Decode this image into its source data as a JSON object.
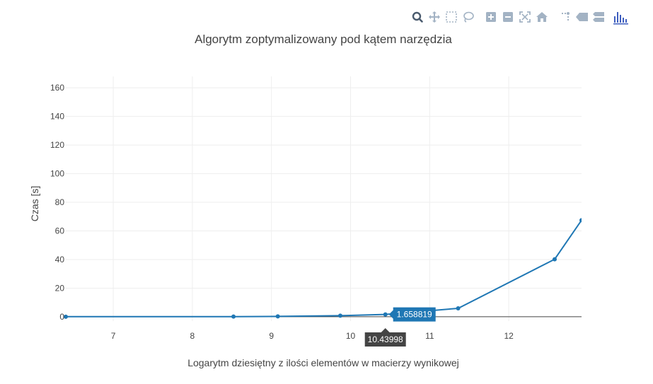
{
  "modebar": {
    "buttons": [
      {
        "name": "zoom-icon",
        "active": true
      },
      {
        "name": "pan-icon",
        "active": false
      },
      {
        "name": "box-select-icon",
        "active": false
      },
      {
        "name": "lasso-select-icon",
        "active": false
      },
      {
        "name": "zoom-in-icon",
        "active": false
      },
      {
        "name": "zoom-out-icon",
        "active": false
      },
      {
        "name": "autoscale-icon",
        "active": false
      },
      {
        "name": "reset-axes-icon",
        "active": false
      },
      {
        "name": "toggle-spike-lines-icon",
        "active": false
      },
      {
        "name": "hover-closest-icon",
        "active": false
      },
      {
        "name": "hover-compare-icon",
        "active": false
      },
      {
        "name": "plotly-logo-icon",
        "active": false
      }
    ],
    "color_idle": "#a3b3c4",
    "color_active": "#4a5b6e",
    "logo_color": "#3f5fbf"
  },
  "chart_data": {
    "type": "line",
    "title": "Algorytm zoptymalizowany pod kątem narzędzia",
    "xlabel": "Logarytm dziesiętny z ilości elementów w macierzy wynikowej",
    "ylabel": "Czas [s]",
    "xlim": [
      6.4,
      12.92
    ],
    "ylim": [
      -3,
      168
    ],
    "xticks": [
      7,
      8,
      9,
      10,
      11,
      12
    ],
    "yticks": [
      0,
      20,
      40,
      60,
      80,
      100,
      120,
      140,
      160
    ],
    "grid": true,
    "line_color": "#1f77b4",
    "series": [
      {
        "x": [
          6.4,
          8.52,
          9.08,
          9.87,
          10.43998,
          11.36,
          12.58,
          12.92
        ],
        "y": [
          0.05,
          0.12,
          0.25,
          0.75,
          1.658819,
          5.9,
          40.2,
          67.5
        ]
      }
    ],
    "hover": {
      "x_label": "10.43998",
      "y_label": "1.658819",
      "x": 10.43998,
      "y": 1.658819
    }
  }
}
